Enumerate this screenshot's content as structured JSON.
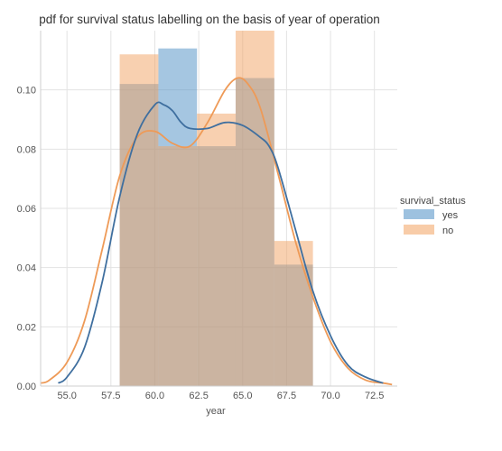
{
  "chart_data": {
    "type": "histogram-kde",
    "title": "pdf for survival status labelling on the basis of year of operation",
    "xlabel": "year",
    "ylabel": "",
    "xlim": [
      53.5,
      73.8
    ],
    "ylim": [
      0,
      0.12
    ],
    "xticks": [
      "55.0",
      "57.5",
      "60.0",
      "62.5",
      "65.0",
      "67.5",
      "70.0",
      "72.5"
    ],
    "yticks": [
      "0.00",
      "0.02",
      "0.04",
      "0.06",
      "0.08",
      "0.10"
    ],
    "grid": true,
    "legend": {
      "title": "survival_status",
      "placement": "right",
      "entries": [
        "yes",
        "no"
      ]
    },
    "series": [
      {
        "name": "yes",
        "color": "#4c8ec4",
        "bar_edges": [
          58,
          60.2,
          62.4,
          64.6,
          66.8,
          69
        ],
        "bar_values": [
          0.102,
          0.114,
          0.081,
          0.104,
          0.041
        ],
        "kde": [
          [
            54.5,
            0.001
          ],
          [
            55,
            0.003
          ],
          [
            56,
            0.013
          ],
          [
            57,
            0.035
          ],
          [
            58,
            0.064
          ],
          [
            59,
            0.085
          ],
          [
            60,
            0.095
          ],
          [
            60.5,
            0.095
          ],
          [
            61,
            0.093
          ],
          [
            61.5,
            0.089
          ],
          [
            62,
            0.087
          ],
          [
            63,
            0.087
          ],
          [
            64,
            0.089
          ],
          [
            65,
            0.088
          ],
          [
            66,
            0.084
          ],
          [
            66.5,
            0.081
          ],
          [
            67,
            0.074
          ],
          [
            68,
            0.053
          ],
          [
            69,
            0.032
          ],
          [
            70,
            0.017
          ],
          [
            71,
            0.007
          ],
          [
            72,
            0.003
          ],
          [
            73,
            0.001
          ]
        ]
      },
      {
        "name": "no",
        "color": "#f2a261",
        "bar_edges": [
          58,
          60.2,
          62.4,
          64.6,
          66.8,
          69
        ],
        "bar_values": [
          0.112,
          0.081,
          0.092,
          0.12,
          0.049
        ],
        "kde": [
          [
            53.5,
            0.001
          ],
          [
            54,
            0.002
          ],
          [
            55,
            0.008
          ],
          [
            56,
            0.022
          ],
          [
            57,
            0.046
          ],
          [
            58,
            0.071
          ],
          [
            59,
            0.084
          ],
          [
            60,
            0.086
          ],
          [
            61,
            0.082
          ],
          [
            62,
            0.081
          ],
          [
            63,
            0.089
          ],
          [
            64,
            0.1
          ],
          [
            64.7,
            0.104
          ],
          [
            65.3,
            0.102
          ],
          [
            66,
            0.094
          ],
          [
            67,
            0.072
          ],
          [
            68,
            0.049
          ],
          [
            69,
            0.03
          ],
          [
            70,
            0.015
          ],
          [
            71,
            0.006
          ],
          [
            72,
            0.002
          ],
          [
            73,
            0.001
          ],
          [
            73.5,
            0.0005
          ]
        ]
      }
    ]
  }
}
